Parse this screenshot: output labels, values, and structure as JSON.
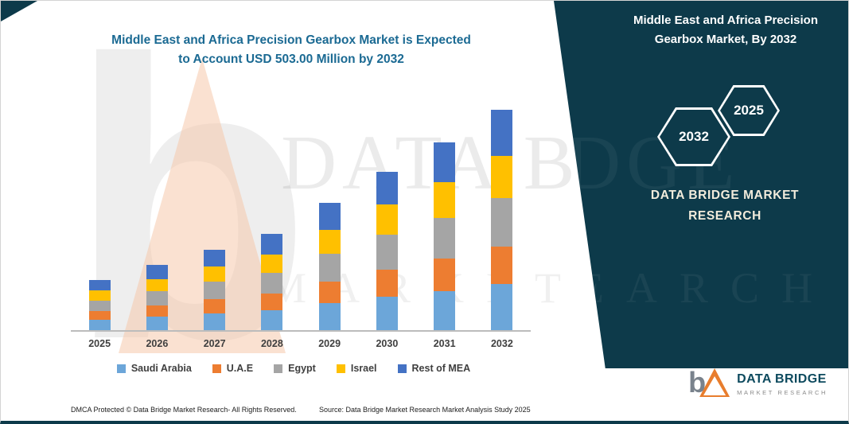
{
  "header": {
    "title_line1": "Middle East and Africa Precision Gearbox Market is Expected",
    "title_line2": "to Account USD 503.00 Million by 2032"
  },
  "side_panel": {
    "heading_line1": "Middle East and Africa Precision",
    "heading_line2": "Gearbox Market, By 2032",
    "hex_left": "2032",
    "hex_right": "2025",
    "brand_line1": "DATA BRIDGE MARKET",
    "brand_line2": "RESEARCH",
    "panel_color": "#0d3a4a"
  },
  "watermark": {
    "line1": "DATA BRIDGE",
    "line2": "MARKET RESEARCH",
    "logo_letter": "b",
    "panel_fragment1": "DGE",
    "panel_fragment2": "EARCH"
  },
  "chart_data": {
    "type": "bar",
    "stacked": true,
    "title": "Middle East and Africa Precision Gearbox Market is Expected to Account USD 503.00 Million by 2032",
    "unit": "USD Million",
    "categories": [
      "2025",
      "2026",
      "2027",
      "2028",
      "2029",
      "2030",
      "2031",
      "2032"
    ],
    "series": [
      {
        "name": "Saudi Arabia",
        "color": "#6ca6d9",
        "values": [
          24,
          31,
          39,
          46,
          61,
          76,
          90,
          106
        ]
      },
      {
        "name": "U.A.E",
        "color": "#ed7d31",
        "values": [
          19,
          25,
          31,
          37,
          49,
          62,
          73,
          85
        ]
      },
      {
        "name": "Egypt",
        "color": "#a5a5a5",
        "values": [
          25,
          33,
          40,
          48,
          64,
          80,
          94,
          111
        ]
      },
      {
        "name": "Israel",
        "color": "#ffc000",
        "values": [
          22,
          28,
          35,
          42,
          55,
          69,
          82,
          96
        ]
      },
      {
        "name": "Rest of MEA",
        "color": "#4472c4",
        "values": [
          24,
          31,
          39,
          47,
          61,
          75,
          90,
          105
        ]
      }
    ],
    "totals": [
      114,
      148,
      184,
      220,
      290,
      362,
      429,
      503
    ],
    "ylim": [
      0,
      560
    ],
    "xlabel": "",
    "ylabel": "",
    "grid": false,
    "legend_position": "bottom"
  },
  "footer": {
    "dmca": "DMCA Protected © Data Bridge Market Research-  All Rights Reserved.",
    "source": "Source: Data Bridge Market Research  Market Analysis Study 2025"
  },
  "logo": {
    "letter": "b",
    "name": "DATA BRIDGE",
    "tagline": "MARKET RESEARCH"
  }
}
